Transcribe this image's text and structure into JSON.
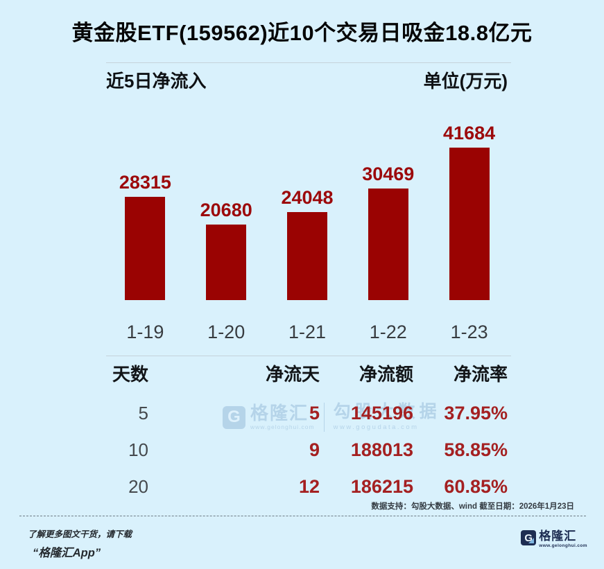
{
  "title": "黄金股ETF(159562)近10个交易日吸金18.8亿元",
  "chart_header": {
    "left_label": "近5日净流入",
    "right_label": "单位(万元)"
  },
  "chart_data": {
    "type": "bar",
    "title": "近5日净流入",
    "unit": "万元",
    "categories": [
      "1-19",
      "1-20",
      "1-21",
      "1-22",
      "1-23"
    ],
    "values": [
      28315,
      20680,
      24048,
      30469,
      41684
    ],
    "xlabel": "",
    "ylabel": "",
    "ylim": [
      0,
      45000
    ],
    "grid": false,
    "legend": false
  },
  "table": {
    "headers": [
      "天数",
      "净流天",
      "净流额",
      "净流率"
    ],
    "rows": [
      {
        "days": "5",
        "net_days": "5",
        "net_amount": "145196",
        "net_rate": "37.95%"
      },
      {
        "days": "10",
        "net_days": "9",
        "net_amount": "188013",
        "net_rate": "58.85%"
      },
      {
        "days": "20",
        "net_days": "12",
        "net_amount": "186215",
        "net_rate": "60.85%"
      }
    ]
  },
  "footer": {
    "data_support": "数据支持：勾股大数据、wind 截至日期：2026年1月23日"
  },
  "promo": {
    "line1": "了解更多图文干货，请下载",
    "line2": "“格隆汇App”"
  },
  "watermark": {
    "gelonghui_name": "格隆汇",
    "gelonghui_url": "www.gelonghui.com",
    "gogudata_name": "勾股大数据",
    "gogudata_url": "www.gogudata.com"
  },
  "logo": {
    "letter": "G",
    "name": "格隆汇",
    "url": "www.gelonghui.com"
  },
  "colors": {
    "background": "#D9F1FC",
    "bar": "#9A0302",
    "bar_label": "#9C090B",
    "value_red": "#A42021",
    "navy": "#1D2D52",
    "watermark_blue": "#AFCFE6"
  }
}
